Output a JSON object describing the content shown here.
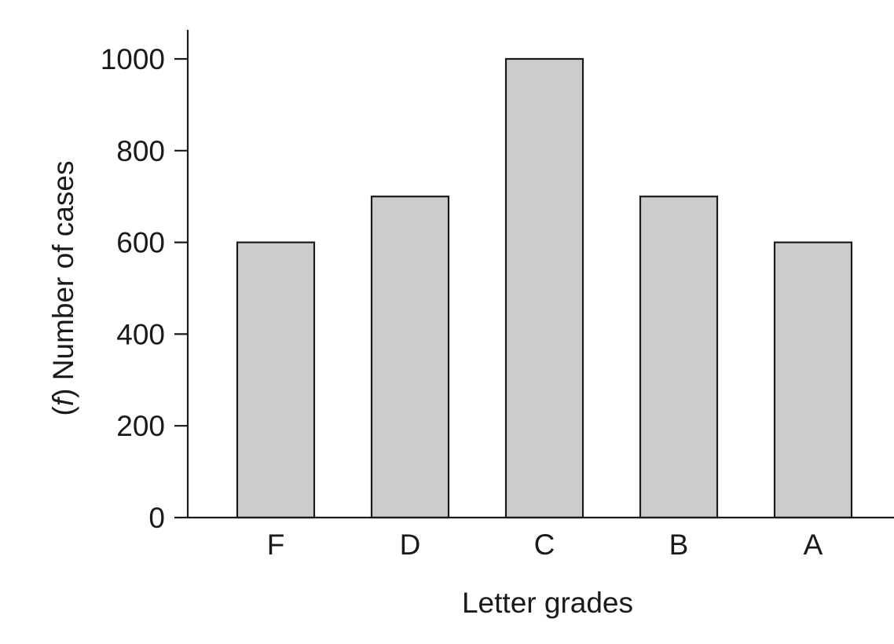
{
  "chart_data": {
    "type": "bar",
    "categories": [
      "F",
      "D",
      "C",
      "B",
      "A"
    ],
    "values": [
      600,
      700,
      1000,
      700,
      600
    ],
    "xlabel": "Letter grades",
    "ylabel_italic": "f",
    "ylabel_rest": " Number of cases",
    "ylabel_open": "(",
    "ylabel_close": ")",
    "yticks": [
      0,
      200,
      400,
      600,
      800,
      1000
    ],
    "ylim": [
      0,
      1060
    ],
    "grid": false,
    "legend": "none",
    "bar_color": "#cccccc",
    "edge_color": "#1a1a1a"
  }
}
